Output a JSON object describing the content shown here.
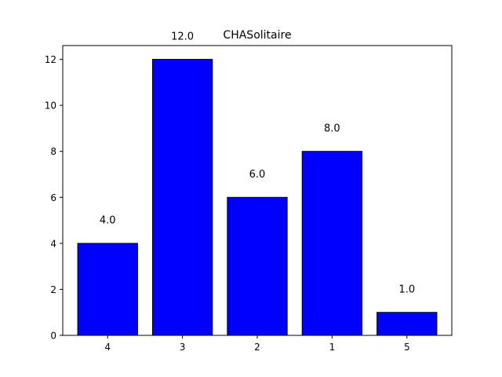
{
  "chart_data": {
    "type": "bar",
    "title": "CHASolitaire",
    "xlabel": "",
    "ylabel": "",
    "categories": [
      "4",
      "3",
      "2",
      "1",
      "5"
    ],
    "values": [
      4,
      12,
      6,
      8,
      1
    ],
    "data_labels": [
      "4.0",
      "12.0",
      "6.0",
      "8.0",
      "1.0"
    ],
    "ylim": [
      0,
      12.6
    ],
    "yticks": [
      0,
      2,
      4,
      6,
      8,
      10,
      12
    ],
    "ytick_labels": [
      "0",
      "2",
      "4",
      "6",
      "8",
      "10",
      "12"
    ],
    "grid": false,
    "legend": "none",
    "bar_color": "#0000ff",
    "edge_color": "#000000"
  }
}
